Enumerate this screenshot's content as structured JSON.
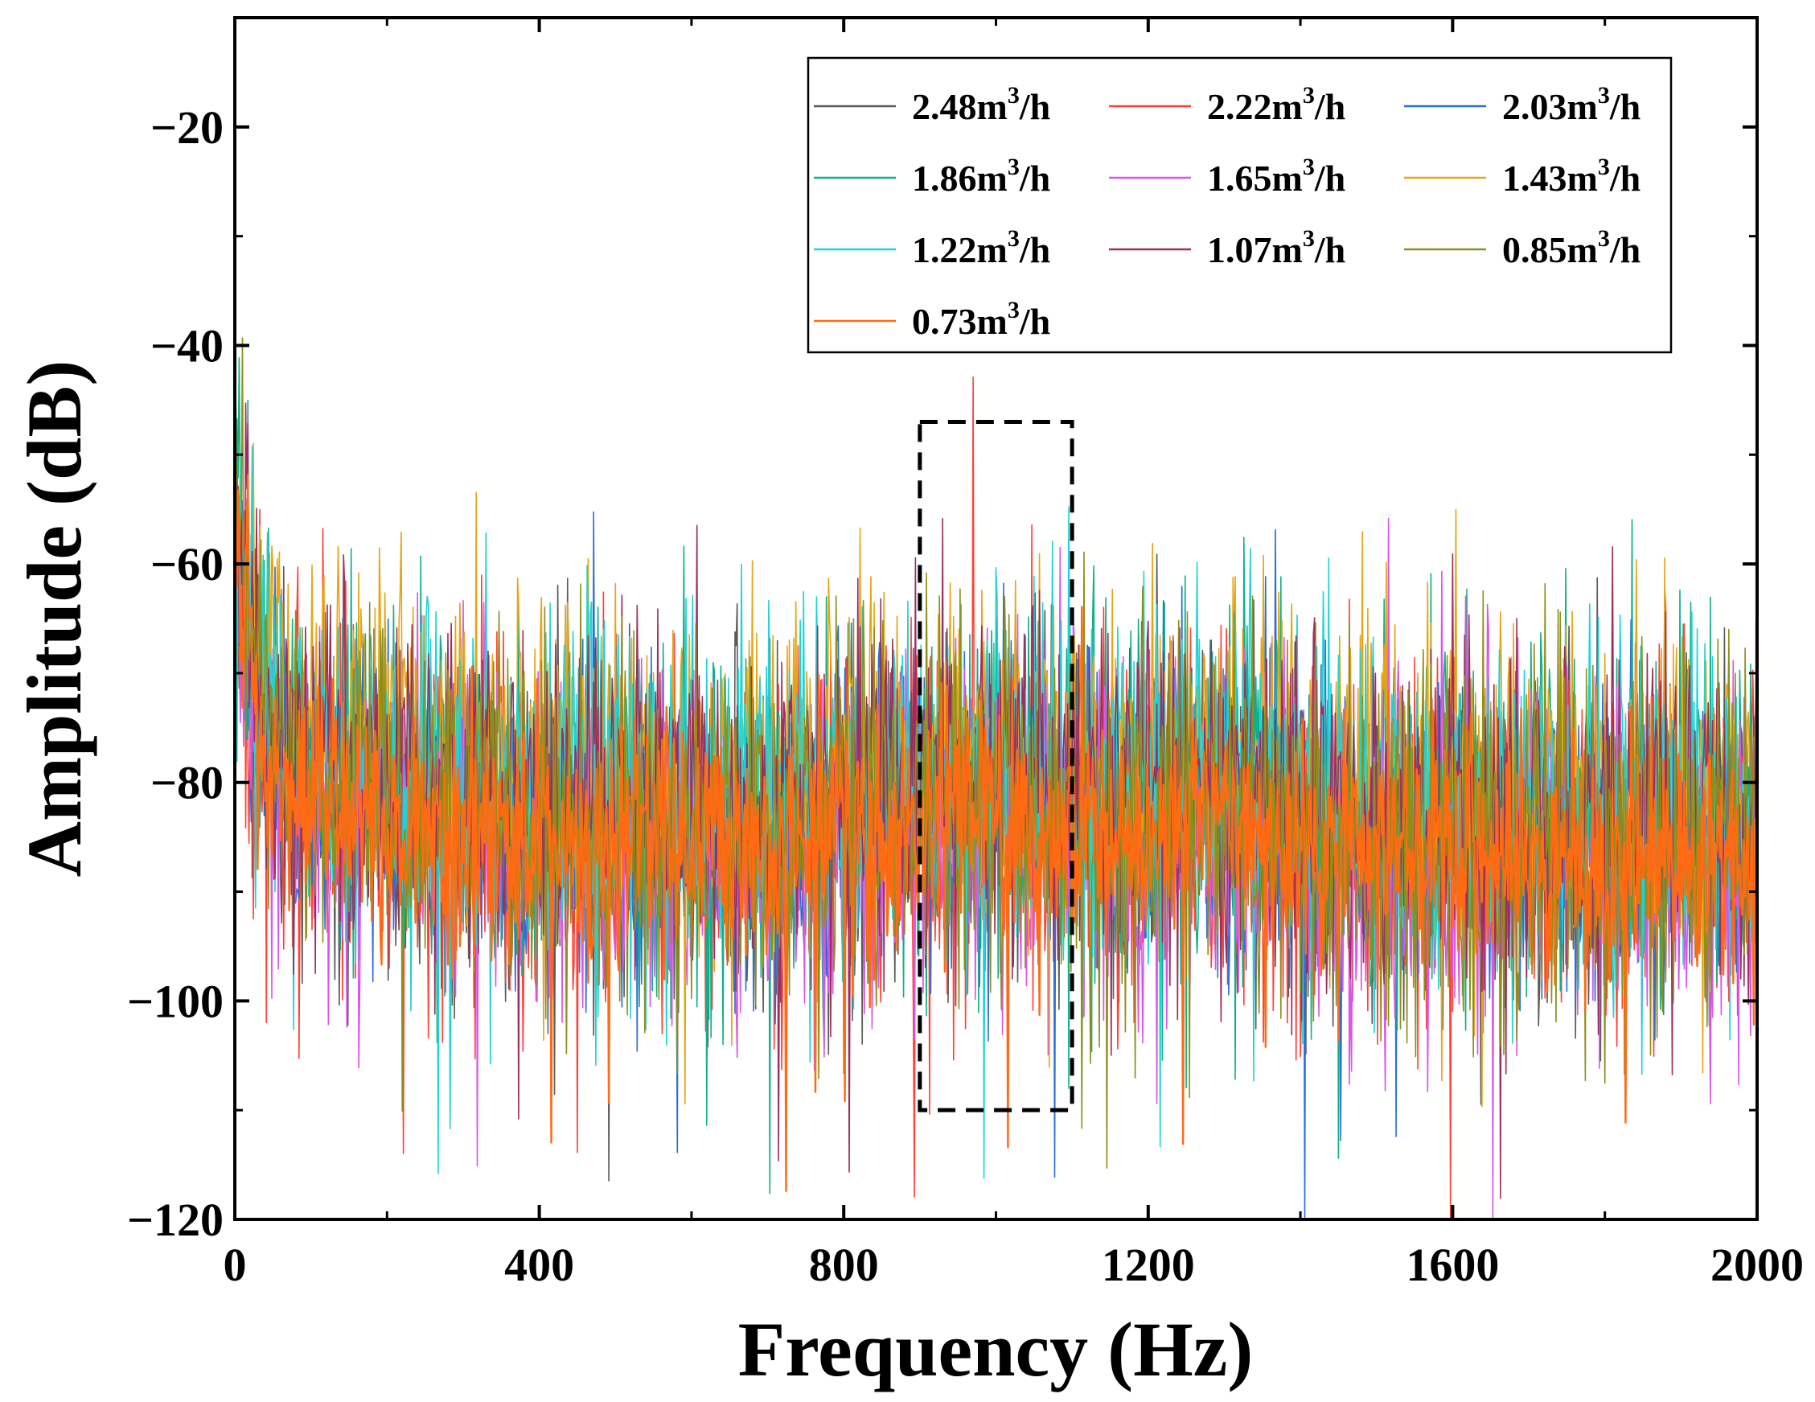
{
  "chart_data": {
    "type": "line",
    "title": "",
    "xlabel": "Frequency (Hz)",
    "ylabel": "Amplitude (dB)",
    "xlim": [
      0,
      2000
    ],
    "ylim": [
      -120,
      -10
    ],
    "xticks": [
      0,
      400,
      800,
      1200,
      1600,
      2000
    ],
    "yticks": [
      -120,
      -100,
      -80,
      -60,
      -40,
      -20
    ],
    "xtick_labels": [
      "0",
      "400",
      "800",
      "1200",
      "1600",
      "2000"
    ],
    "ytick_labels": [
      "−120",
      "−100",
      "−80",
      "−60",
      "−40",
      "−20"
    ],
    "grid": false,
    "legend_position": "top-right",
    "legend_unit": "m3/h",
    "series": [
      {
        "name": "2.48",
        "unit_base": "m",
        "unit_exp": "3",
        "unit_tail": "/h",
        "color": "#5a5a5a",
        "seed": 11,
        "offset": -1.0,
        "spread": 7.5
      },
      {
        "name": "2.22",
        "unit_base": "m",
        "unit_exp": "3",
        "unit_tail": "/h",
        "color": "#ff4136",
        "seed": 23,
        "offset": -1.5,
        "spread": 8.0
      },
      {
        "name": "2.03",
        "unit_base": "m",
        "unit_exp": "3",
        "unit_tail": "/h",
        "color": "#2b6fd6",
        "seed": 37,
        "offset": -0.5,
        "spread": 7.0
      },
      {
        "name": "1.86",
        "unit_base": "m",
        "unit_exp": "3",
        "unit_tail": "/h",
        "color": "#10b08a",
        "seed": 41,
        "offset": 1.0,
        "spread": 8.0
      },
      {
        "name": "1.65",
        "unit_base": "m",
        "unit_exp": "3",
        "unit_tail": "/h",
        "color": "#d957e8",
        "seed": 53,
        "offset": -2.0,
        "spread": 8.5
      },
      {
        "name": "1.43",
        "unit_base": "m",
        "unit_exp": "3",
        "unit_tail": "/h",
        "color": "#e6a514",
        "seed": 67,
        "offset": 5.0,
        "spread": 7.0
      },
      {
        "name": "1.22",
        "unit_base": "m",
        "unit_exp": "3",
        "unit_tail": "/h",
        "color": "#1fd3d3",
        "seed": 71,
        "offset": 2.0,
        "spread": 8.0
      },
      {
        "name": "1.07",
        "unit_base": "m",
        "unit_exp": "3",
        "unit_tail": "/h",
        "color": "#9b2f5e",
        "seed": 83,
        "offset": 1.5,
        "spread": 7.5
      },
      {
        "name": "0.85",
        "unit_base": "m",
        "unit_exp": "3",
        "unit_tail": "/h",
        "color": "#8e8f1a",
        "seed": 97,
        "offset": -1.0,
        "spread": 8.0
      },
      {
        "name": "0.73",
        "unit_base": "m",
        "unit_exp": "3",
        "unit_tail": "/h",
        "color": "#ff6a13",
        "seed": 101,
        "offset": -2.0,
        "spread": 5.0
      }
    ],
    "highlight_region": {
      "x": [
        900,
        1100
      ],
      "y": [
        -110,
        -47
      ],
      "style": "dashed"
    }
  }
}
